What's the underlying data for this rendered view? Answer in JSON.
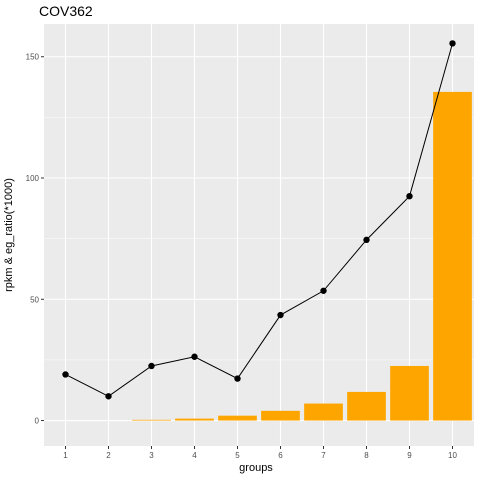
{
  "chart_data": {
    "type": "bar",
    "title": "COV362",
    "xlabel": "groups",
    "ylabel": "rpkm & eg_ratio(*1000)",
    "categories": [
      "1",
      "2",
      "3",
      "4",
      "5",
      "6",
      "7",
      "8",
      "9",
      "10"
    ],
    "series": [
      {
        "type": "bar",
        "values": [
          0,
          0,
          0.3,
          0.8,
          2.0,
          4.0,
          7.0,
          11.8,
          22.5,
          135.5
        ],
        "color": "#FFA500"
      },
      {
        "type": "line",
        "values": [
          19,
          10,
          22.5,
          26.3,
          17.3,
          43.5,
          53.5,
          74.5,
          92.5,
          155.5
        ],
        "color": "#000000"
      }
    ],
    "ylim": [
      -10.5,
      163.5
    ],
    "yticks": [
      0,
      50,
      100,
      150
    ],
    "grid": true,
    "panel_background": "#EBEBEB",
    "gridline_color": "#FFFFFF"
  }
}
